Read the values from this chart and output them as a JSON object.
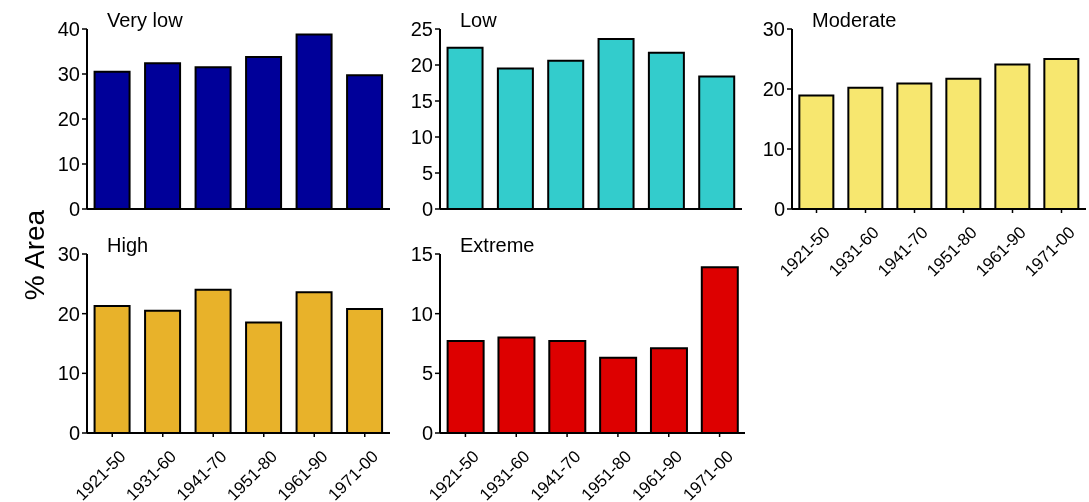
{
  "chart_data": [
    {
      "type": "bar",
      "title": "Very low",
      "ylabel": "% Area",
      "categories": [
        "1921-50",
        "1931-60",
        "1941-70",
        "1951-80",
        "1961-90",
        "1971-00"
      ],
      "values": [
        30.5,
        32.4,
        31.5,
        33.8,
        38.8,
        29.7
      ],
      "color": "#000099",
      "ylim": [
        0,
        40
      ],
      "yticks": [
        0,
        10,
        20,
        30,
        40
      ],
      "tick_labels": "y"
    },
    {
      "type": "bar",
      "title": "Low",
      "categories": [
        "1921-50",
        "1931-60",
        "1941-70",
        "1951-80",
        "1961-90",
        "1971-00"
      ],
      "values": [
        22.4,
        19.5,
        20.6,
        23.6,
        21.7,
        18.4
      ],
      "color": "#33cccc",
      "ylim": [
        0,
        25
      ],
      "yticks": [
        0,
        5,
        10,
        15,
        20,
        25
      ],
      "tick_labels": "y"
    },
    {
      "type": "bar",
      "title": "Moderate",
      "categories": [
        "1921-50",
        "1931-60",
        "1941-70",
        "1951-80",
        "1961-90",
        "1971-00"
      ],
      "values": [
        18.9,
        20.2,
        20.9,
        21.7,
        24.1,
        25.0
      ],
      "color": "#f7e76f",
      "ylim": [
        0,
        30
      ],
      "yticks": [
        0,
        10,
        20,
        30
      ]
    },
    {
      "type": "bar",
      "title": "High",
      "categories": [
        "1921-50",
        "1931-60",
        "1941-70",
        "1951-80",
        "1961-90",
        "1971-00"
      ],
      "values": [
        21.3,
        20.5,
        24.0,
        18.5,
        23.6,
        20.8
      ],
      "color": "#e8b22a",
      "ylim": [
        0,
        30
      ],
      "yticks": [
        0,
        10,
        20,
        30
      ]
    },
    {
      "type": "bar",
      "title": "Extreme",
      "categories": [
        "1921-50",
        "1931-60",
        "1941-70",
        "1951-80",
        "1961-90",
        "1971-00"
      ],
      "values": [
        7.7,
        8.0,
        7.7,
        6.3,
        7.1,
        13.9
      ],
      "color": "#dd0000",
      "ylim": [
        0,
        15
      ],
      "yticks": [
        0,
        5,
        10,
        15
      ]
    }
  ]
}
